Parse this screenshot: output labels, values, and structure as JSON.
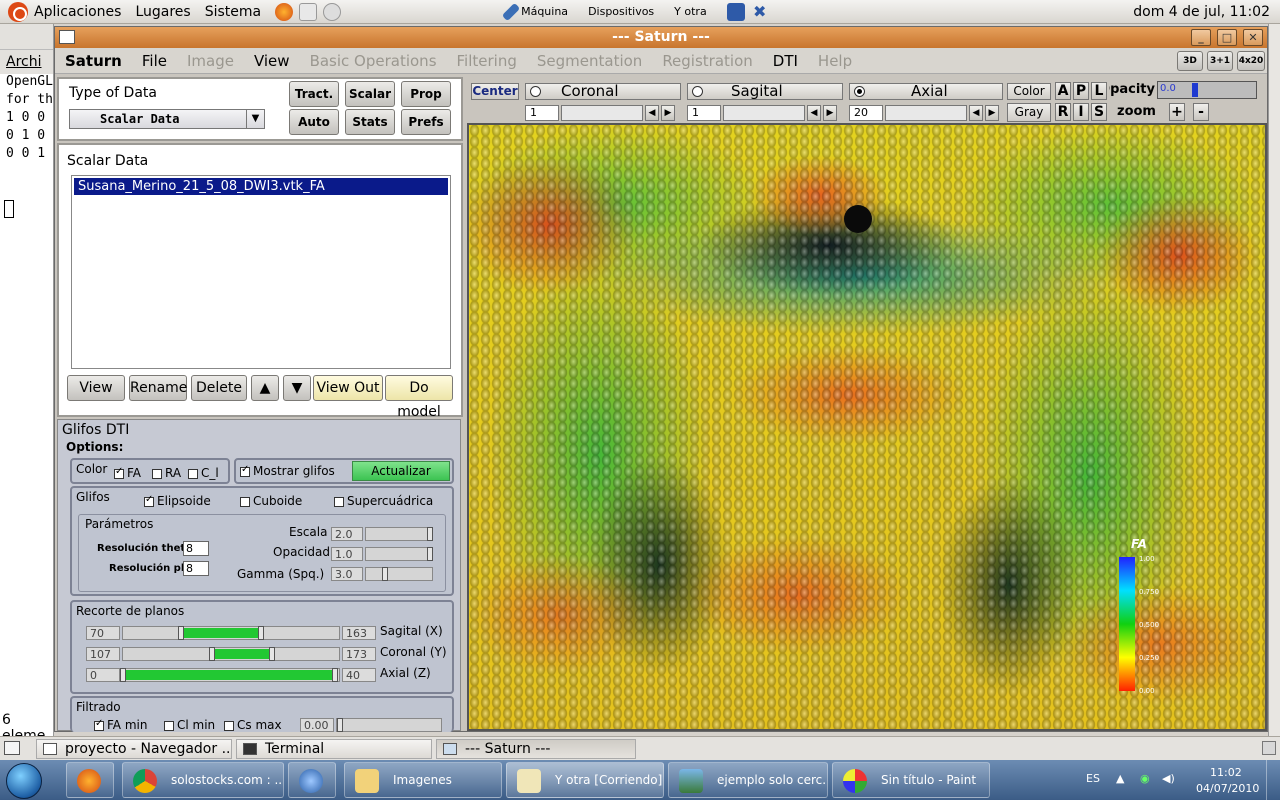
{
  "top_panel": {
    "menus": [
      "Aplicaciones",
      "Lugares",
      "Sistema"
    ],
    "vm_menus": [
      "Máquina",
      "Dispositivos",
      "Y otra"
    ],
    "clock": "dom  4 de jul, 11:02"
  },
  "bg_terminal": {
    "title": "Archi",
    "lines": [
      "OpenGL",
      "for th",
      "1 0 0",
      "0 1 0",
      "0 0 1"
    ]
  },
  "window": {
    "title": "--- Saturn ---",
    "menu": [
      {
        "label": "Saturn",
        "enabled": true,
        "bold": true
      },
      {
        "label": "File",
        "enabled": true
      },
      {
        "label": "Image",
        "enabled": false
      },
      {
        "label": "View",
        "enabled": true
      },
      {
        "label": "Basic Operations",
        "enabled": false
      },
      {
        "label": "Filtering",
        "enabled": false
      },
      {
        "label": "Segmentation",
        "enabled": false
      },
      {
        "label": "Registration",
        "enabled": false
      },
      {
        "label": "DTI",
        "enabled": true
      },
      {
        "label": "Help",
        "enabled": false
      }
    ],
    "layout_buttons": [
      "3D",
      "3+1",
      "4x20"
    ]
  },
  "type_panel": {
    "title": "Type of Data",
    "selected": "Scalar Data",
    "buttons": [
      "Tract.",
      "Scalar",
      "Prop",
      "Auto",
      "Stats",
      "Prefs"
    ]
  },
  "scalar_panel": {
    "title": "Scalar Data",
    "items": [
      "Susana_Merino_21_5_08_DWI3.vtk_FA"
    ],
    "buttons": [
      "View",
      "Rename",
      "Delete",
      "▲",
      "▼",
      "View Out",
      "Do model"
    ]
  },
  "glifos": {
    "title": "Glifos DTI",
    "options_label": "Options:",
    "color_label": "Color",
    "color_options": [
      {
        "label": "FA",
        "checked": true
      },
      {
        "label": "RA",
        "checked": false
      },
      {
        "label": "C_l",
        "checked": false
      }
    ],
    "show_glyphs": {
      "label": "Mostrar glifos",
      "checked": true
    },
    "update_button": "Actualizar",
    "glyphs_label": "Glifos",
    "glyph_options": [
      {
        "label": "Elipsoide",
        "checked": true
      },
      {
        "label": "Cuboide",
        "checked": false
      },
      {
        "label": "Supercuádrica",
        "checked": false
      }
    ],
    "params_label": "Parámetros",
    "res_theta": {
      "label": "Resolución theta",
      "value": "8"
    },
    "res_phi": {
      "label": "Resolución phi",
      "value": "8"
    },
    "escala": {
      "label": "Escala",
      "value": "2.0",
      "level": 0.98
    },
    "opacidad": {
      "label": "Opacidad",
      "value": "1.0",
      "level": 0.98
    },
    "gamma": {
      "label": "Gamma (Spq.)",
      "value": "3.0",
      "level": 0.3
    },
    "planes_label": "Recorte de planos",
    "planes": [
      {
        "label": "Sagital (X)",
        "min": "70",
        "max": "163",
        "range": [
          0.27,
          0.64
        ]
      },
      {
        "label": "Coronal (Y)",
        "min": "107",
        "max": "173",
        "range": [
          0.41,
          0.69
        ]
      },
      {
        "label": "Axial (Z)",
        "min": "0",
        "max": "40",
        "range": [
          0.0,
          0.98
        ]
      }
    ],
    "filter_label": "Filtrado",
    "filters": [
      {
        "label": "FA min",
        "checked": true
      },
      {
        "label": "Cl min",
        "checked": false
      },
      {
        "label": "Cs max",
        "checked": false
      }
    ],
    "filter_value": "0.00"
  },
  "view_controls": {
    "center": "Center",
    "views": [
      {
        "label": "Coronal",
        "selected": false,
        "slice": "1"
      },
      {
        "label": "Sagital",
        "selected": false,
        "slice": "1"
      },
      {
        "label": "Axial",
        "selected": true,
        "slice": "20"
      }
    ],
    "color_btn": "Color",
    "gray_btn": "Gray",
    "orient_top": [
      "A",
      "P",
      "L"
    ],
    "orient_bottom": [
      "R",
      "I",
      "S"
    ],
    "opacity_label": "Opacity",
    "opacity_value": "0.0",
    "zoom_label": "zoom",
    "zoom_in": "+",
    "zoom_out": "-"
  },
  "colorbar": {
    "label": "FA",
    "ticks": [
      "1.00",
      "0.750",
      "0.500",
      "0.250",
      "0.00"
    ]
  },
  "status_left": "6 eleme",
  "taskbar_gnome": [
    {
      "label": "proyecto - Navegador ...",
      "active": false
    },
    {
      "label": "Terminal",
      "active": false
    },
    {
      "label": "--- Saturn ---",
      "active": true
    }
  ],
  "taskbar_windows": [
    {
      "label": "solostocks.com : ...",
      "icon": "chrome-icon"
    },
    {
      "label": "Imagenes",
      "icon": "folder-icon"
    },
    {
      "label": "Y otra [Corriendo]...",
      "icon": "virtualbox-icon"
    },
    {
      "label": "ejemplo solo cerc...",
      "icon": "image-icon"
    },
    {
      "label": "Sin título - Paint",
      "icon": "paint-icon"
    }
  ],
  "tray": {
    "lang": "ES",
    "time": "11:02",
    "date": "04/07/2010"
  },
  "colors": {
    "accent_title": "#d98a42",
    "selection": "#0a1a8a",
    "slider_fill": "#22c833"
  }
}
